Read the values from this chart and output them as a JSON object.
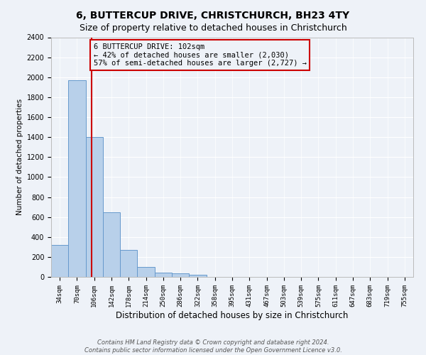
{
  "title": "6, BUTTERCUP DRIVE, CHRISTCHURCH, BH23 4TY",
  "subtitle": "Size of property relative to detached houses in Christchurch",
  "xlabel": "Distribution of detached houses by size in Christchurch",
  "ylabel": "Number of detached properties",
  "footnote1": "Contains HM Land Registry data © Crown copyright and database right 2024.",
  "footnote2": "Contains public sector information licensed under the Open Government Licence v3.0.",
  "bar_labels": [
    "34sqm",
    "70sqm",
    "106sqm",
    "142sqm",
    "178sqm",
    "214sqm",
    "250sqm",
    "286sqm",
    "322sqm",
    "358sqm",
    "395sqm",
    "431sqm",
    "467sqm",
    "503sqm",
    "539sqm",
    "575sqm",
    "611sqm",
    "647sqm",
    "683sqm",
    "719sqm",
    "755sqm"
  ],
  "bar_values": [
    320,
    1970,
    1400,
    650,
    270,
    100,
    40,
    35,
    20,
    0,
    0,
    0,
    0,
    0,
    0,
    0,
    0,
    0,
    0,
    0,
    0
  ],
  "bar_color": "#b8d0ea",
  "bar_edge_color": "#6699cc",
  "ylim_max": 2400,
  "yticks": [
    0,
    200,
    400,
    600,
    800,
    1000,
    1200,
    1400,
    1600,
    1800,
    2000,
    2200,
    2400
  ],
  "property_label": "6 BUTTERCUP DRIVE: 102sqm",
  "annotation_line1": "← 42% of detached houses are smaller (2,030)",
  "annotation_line2": "57% of semi-detached houses are larger (2,727) →",
  "vline_color": "#cc0000",
  "vline_x": 1.83,
  "bg_color": "#eef2f8",
  "grid_color": "#ffffff",
  "title_fontsize": 10,
  "subtitle_fontsize": 9,
  "annot_fontsize": 7.5,
  "ylabel_fontsize": 7.5,
  "xlabel_fontsize": 8.5,
  "tick_fontsize": 6.5,
  "footnote_fontsize": 6.0
}
